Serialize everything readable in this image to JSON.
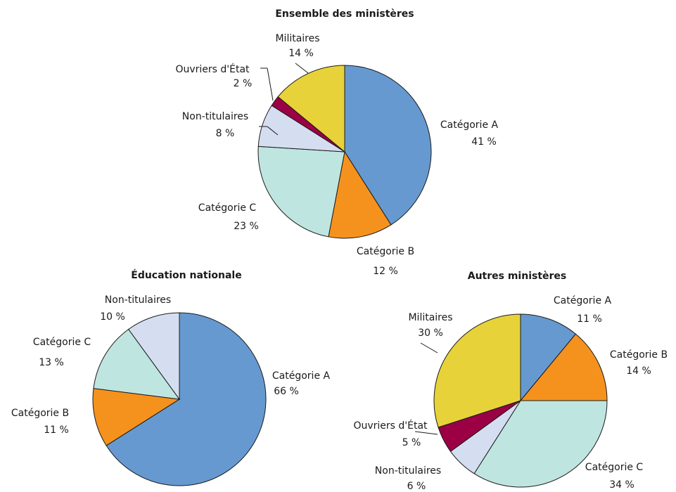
{
  "chart_data": [
    {
      "type": "pie",
      "title": "Ensemble des ministères",
      "categories": [
        "Catégorie A",
        "Catégorie B",
        "Catégorie C",
        "Non-titulaires",
        "Ouvriers d'État",
        "Militaires"
      ],
      "values": [
        41,
        12,
        23,
        8,
        2,
        14
      ],
      "value_labels": [
        "41 %",
        "12 %",
        "23 %",
        "8 %",
        "2 %",
        "14 %"
      ],
      "colors": [
        "#6699d0",
        "#f5921e",
        "#bfe5e0",
        "#d5def0",
        "#9b0045",
        "#e8d23a"
      ]
    },
    {
      "type": "pie",
      "title": "Éducation nationale",
      "categories": [
        "Catégorie A",
        "Catégorie B",
        "Catégorie C",
        "Non-titulaires"
      ],
      "values": [
        66,
        11,
        13,
        10
      ],
      "value_labels": [
        "66 %",
        "11 %",
        "13 %",
        "10 %"
      ],
      "colors": [
        "#6699d0",
        "#f5921e",
        "#bfe5e0",
        "#d5def0"
      ]
    },
    {
      "type": "pie",
      "title": "Autres ministères",
      "categories": [
        "Catégorie A",
        "Catégorie B",
        "Catégorie C",
        "Non-titulaires",
        "Ouvriers d'État",
        "Militaires"
      ],
      "values": [
        11,
        14,
        34,
        6,
        5,
        30
      ],
      "value_labels": [
        "11 %",
        "14 %",
        "34 %",
        "6 %",
        "5 %",
        "30 %"
      ],
      "colors": [
        "#6699d0",
        "#f5921e",
        "#bfe5e0",
        "#d5def0",
        "#9b0045",
        "#e8d23a"
      ]
    }
  ]
}
